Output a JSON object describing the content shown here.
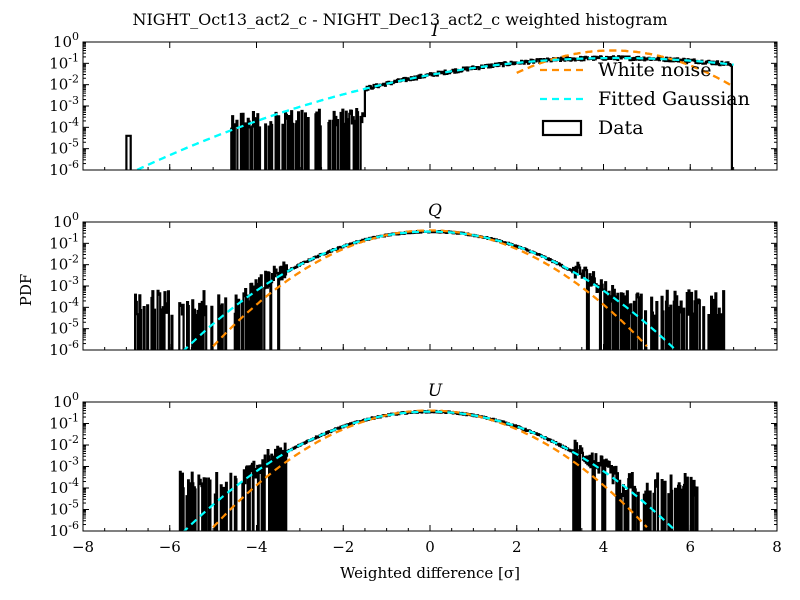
{
  "figure": {
    "title": "NIGHT_Oct13_act2_c - NIGHT_Dec13_act2_c weighted histogram",
    "ylabel": "PDF",
    "xlabel": "Weighted difference [σ]"
  },
  "legend": {
    "location": "lower right of top panel",
    "items": [
      {
        "label": "White noise",
        "color": "#ff8c00",
        "style": "dashed"
      },
      {
        "label": "Fitted Gaussian",
        "color": "#00ffff",
        "style": "dashed"
      },
      {
        "label": "Data",
        "color": "#000000",
        "style": "box"
      }
    ]
  },
  "chart_data": [
    {
      "type": "line",
      "title": "I",
      "xlim": [
        -8,
        8
      ],
      "ylim": [
        1e-06,
        1
      ],
      "yscale": "log",
      "xticks": [
        "−8",
        "−6",
        "−4",
        "−2",
        "0",
        "2",
        "4",
        "6",
        "8"
      ],
      "yticks": [
        "10^0",
        "10^-1",
        "10^-2",
        "10^-3",
        "10^-4",
        "10^-5",
        "10^-6"
      ],
      "series": [
        {
          "name": "White noise",
          "color": "#ff8c00",
          "model": {
            "mu": 4.2,
            "sigma": 1.0,
            "amp": 0.4
          },
          "xrange": [
            2.0,
            7.0
          ]
        },
        {
          "name": "Fitted Gaussian",
          "color": "#00ffff",
          "model": {
            "mu": 4.3,
            "sigma": 2.25,
            "amp": 0.177
          },
          "xrange": [
            -7.0,
            7.0
          ]
        },
        {
          "name": "Data",
          "color": "#000000",
          "profile": "I",
          "xrange": [
            -7.0,
            7.0
          ]
        }
      ]
    },
    {
      "type": "line",
      "title": "Q",
      "xlim": [
        -8,
        8
      ],
      "ylim": [
        1e-06,
        1
      ],
      "yscale": "log",
      "xticks": [
        "−8",
        "−6",
        "−4",
        "−2",
        "0",
        "2",
        "4",
        "6",
        "8"
      ],
      "yticks": [
        "10^0",
        "10^-1",
        "10^-2",
        "10^-3",
        "10^-4",
        "10^-5",
        "10^-6"
      ],
      "series": [
        {
          "name": "White noise",
          "color": "#ff8c00",
          "model": {
            "mu": 0,
            "sigma": 1.0,
            "amp": 0.4
          },
          "xrange": [
            -5.0,
            5.0
          ]
        },
        {
          "name": "Fitted Gaussian",
          "color": "#00ffff",
          "model": {
            "mu": 0,
            "sigma": 1.12,
            "amp": 0.356
          },
          "xrange": [
            -5.9,
            5.9
          ]
        },
        {
          "name": "Data",
          "color": "#000000",
          "profile": "QU",
          "xrange": [
            -7.0,
            7.0
          ]
        }
      ]
    },
    {
      "type": "line",
      "title": "U",
      "xlim": [
        -8,
        8
      ],
      "ylim": [
        1e-06,
        1
      ],
      "yscale": "log",
      "xticks": [
        "−8",
        "−6",
        "−4",
        "−2",
        "0",
        "2",
        "4",
        "6",
        "8"
      ],
      "yticks": [
        "10^0",
        "10^-1",
        "10^-2",
        "10^-3",
        "10^-4",
        "10^-5",
        "10^-6"
      ],
      "series": [
        {
          "name": "White noise",
          "color": "#ff8c00",
          "model": {
            "mu": 0,
            "sigma": 1.0,
            "amp": 0.4
          },
          "xrange": [
            -5.0,
            5.0
          ]
        },
        {
          "name": "Fitted Gaussian",
          "color": "#00ffff",
          "model": {
            "mu": 0,
            "sigma": 1.12,
            "amp": 0.356
          },
          "xrange": [
            -5.9,
            5.9
          ]
        },
        {
          "name": "Data",
          "color": "#000000",
          "profile": "QU",
          "xrange": [
            -5.8,
            6.2
          ]
        }
      ]
    }
  ]
}
